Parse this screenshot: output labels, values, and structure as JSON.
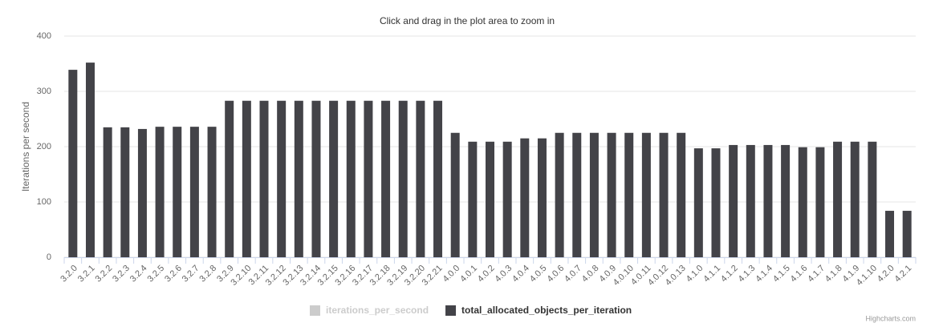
{
  "chart_data": {
    "type": "bar",
    "subtitle": "Click and drag in the plot area to zoom in",
    "y_label": "Iterations per second",
    "credits": "Highcharts.com",
    "categories": [
      "3.2.0",
      "3.2.1",
      "3.2.2",
      "3.2.3",
      "3.2.4",
      "3.2.5",
      "3.2.6",
      "3.2.7",
      "3.2.8",
      "3.2.9",
      "3.2.10",
      "3.2.11",
      "3.2.12",
      "3.2.13",
      "3.2.14",
      "3.2.15",
      "3.2.16",
      "3.2.17",
      "3.2.18",
      "3.2.19",
      "3.2.20",
      "3.2.21",
      "4.0.0",
      "4.0.1",
      "4.0.2",
      "4.0.3",
      "4.0.4",
      "4.0.5",
      "4.0.6",
      "4.0.7",
      "4.0.8",
      "4.0.9",
      "4.0.10",
      "4.0.11",
      "4.0.12",
      "4.0.13",
      "4.1.0",
      "4.1.1",
      "4.1.2",
      "4.1.3",
      "4.1.4",
      "4.1.5",
      "4.1.6",
      "4.1.7",
      "4.1.8",
      "4.1.9",
      "4.1.10",
      "4.2.0",
      "4.2.1"
    ],
    "series": [
      {
        "name": "iterations_per_second",
        "color": "#cccccc",
        "visible": false
      },
      {
        "name": "total_allocated_objects_per_iteration",
        "color": "#434348",
        "visible": true,
        "values": [
          339,
          352,
          235,
          235,
          232,
          236,
          236,
          236,
          236,
          283,
          283,
          283,
          283,
          283,
          283,
          283,
          283,
          283,
          283,
          283,
          283,
          283,
          225,
          209,
          209,
          209,
          215,
          215,
          225,
          225,
          225,
          225,
          225,
          225,
          225,
          225,
          197,
          197,
          203,
          203,
          203,
          203,
          199,
          199,
          209,
          209,
          209,
          84,
          84
        ]
      }
    ],
    "ylim": [
      0,
      400
    ],
    "yticks": [
      0,
      100,
      200,
      300,
      400
    ],
    "grid": true
  }
}
